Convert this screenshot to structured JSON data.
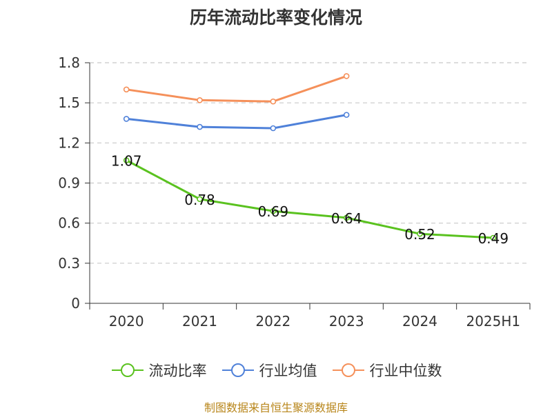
{
  "chart_data": {
    "type": "line",
    "title": "历年流动比率变化情况",
    "categories": [
      "2020",
      "2021",
      "2022",
      "2023",
      "2024",
      "2025H1"
    ],
    "ylim": [
      0,
      1.8
    ],
    "yticks": [
      "0",
      "0.3",
      "0.6",
      "0.9",
      "1.2",
      "1.5",
      "1.8"
    ],
    "grid": true,
    "legend_position": "bottom",
    "series": [
      {
        "name": "流动比率",
        "color": "#5ac21f",
        "values": [
          1.07,
          0.78,
          0.69,
          0.64,
          0.52,
          0.49
        ],
        "labels": [
          "1.07",
          "0.78",
          "0.69",
          "0.64",
          "0.52",
          "0.49"
        ]
      },
      {
        "name": "行业均值",
        "color": "#4f81d9",
        "values": [
          1.38,
          1.32,
          1.31,
          1.41,
          null,
          null
        ]
      },
      {
        "name": "行业中位数",
        "color": "#f5905a",
        "values": [
          1.6,
          1.52,
          1.51,
          1.7,
          null,
          null
        ]
      }
    ],
    "source": "制图数据来自恒生聚源数据库"
  }
}
